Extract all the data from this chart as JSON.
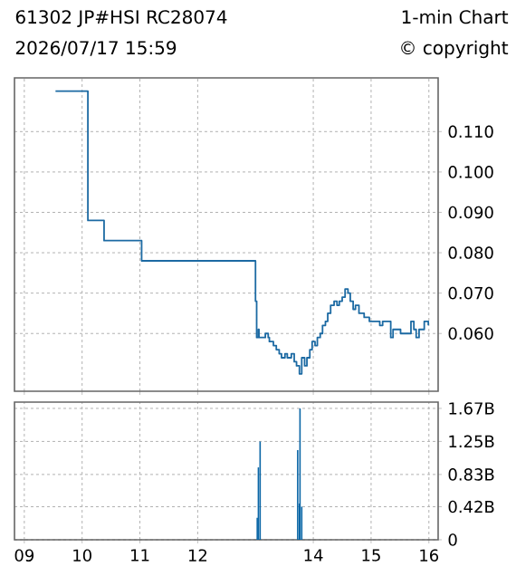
{
  "chart_data": [
    {
      "type": "step",
      "title": "61302 JP#HSI  RC28074",
      "subtitle": "2026/07/17 15:59",
      "annotations": [
        "1-min Chart",
        "© copyright"
      ],
      "x": [
        9.54,
        10.1,
        10.38,
        11.03,
        13.0,
        13.02,
        13.05,
        13.06,
        13.17,
        13.22,
        13.24,
        13.31,
        13.36,
        13.41,
        13.45,
        13.51,
        13.55,
        13.62,
        13.67,
        13.71,
        13.76,
        13.8,
        13.85,
        13.89,
        13.94,
        13.98,
        14.03,
        14.07,
        14.12,
        14.16,
        14.21,
        14.25,
        14.3,
        14.36,
        14.41,
        14.45,
        14.5,
        14.55,
        14.6,
        14.64,
        14.69,
        14.73,
        14.79,
        14.88,
        14.97,
        15.15,
        15.2,
        15.34,
        15.38,
        15.51,
        15.69,
        15.74,
        15.78,
        15.83,
        15.92,
        15.99
      ],
      "series": [
        {
          "color": "#1c6aa3",
          "values": [
            0.12,
            0.088,
            0.083,
            0.078,
            0.068,
            0.059,
            0.061,
            0.059,
            0.06,
            0.059,
            0.058,
            0.057,
            0.056,
            0.055,
            0.054,
            0.055,
            0.054,
            0.055,
            0.053,
            0.052,
            0.05,
            0.054,
            0.052,
            0.054,
            0.056,
            0.058,
            0.057,
            0.059,
            0.06,
            0.062,
            0.063,
            0.065,
            0.067,
            0.068,
            0.067,
            0.068,
            0.069,
            0.071,
            0.07,
            0.068,
            0.066,
            0.067,
            0.065,
            0.064,
            0.063,
            0.062,
            0.063,
            0.059,
            0.061,
            0.06,
            0.063,
            0.061,
            0.059,
            0.061,
            0.063,
            0.062
          ]
        }
      ],
      "xlim": [
        8.83,
        16.16
      ],
      "ylim": [
        0.0457,
        0.1233
      ],
      "xticks": [
        9,
        10,
        11,
        12,
        14,
        15,
        16
      ],
      "yticks": [
        {
          "value": 0.06,
          "label": "0.060"
        },
        {
          "value": 0.07,
          "label": "0.070"
        },
        {
          "value": 0.08,
          "label": "0.080"
        },
        {
          "value": 0.09,
          "label": "0.090"
        },
        {
          "value": 0.1,
          "label": "0.100"
        },
        {
          "value": 0.11,
          "label": "0.110"
        }
      ],
      "grid": true,
      "tick_labels": "y"
    },
    {
      "type": "bar",
      "x": [
        13.03,
        13.05,
        13.08,
        13.73,
        13.76,
        13.77,
        13.8
      ],
      "series": [
        {
          "color": "#0a66a6",
          "values": [
            0.28,
            0.92,
            1.25,
            1.14,
            0.46,
            1.67,
            0.42
          ]
        }
      ],
      "xlim": [
        8.83,
        16.16
      ],
      "ylim": [
        0,
        1.75
      ],
      "xticks": [
        {
          "value": 9,
          "label": "09"
        },
        10,
        11,
        12,
        14,
        15,
        16
      ],
      "yticks": [
        0,
        {
          "value": 0.42,
          "label": "0.42B"
        },
        {
          "value": 0.83,
          "label": "0.83B"
        },
        {
          "value": 1.25,
          "label": "1.25B"
        },
        {
          "value": 1.67,
          "label": "1.67B"
        }
      ],
      "grid": true
    }
  ]
}
